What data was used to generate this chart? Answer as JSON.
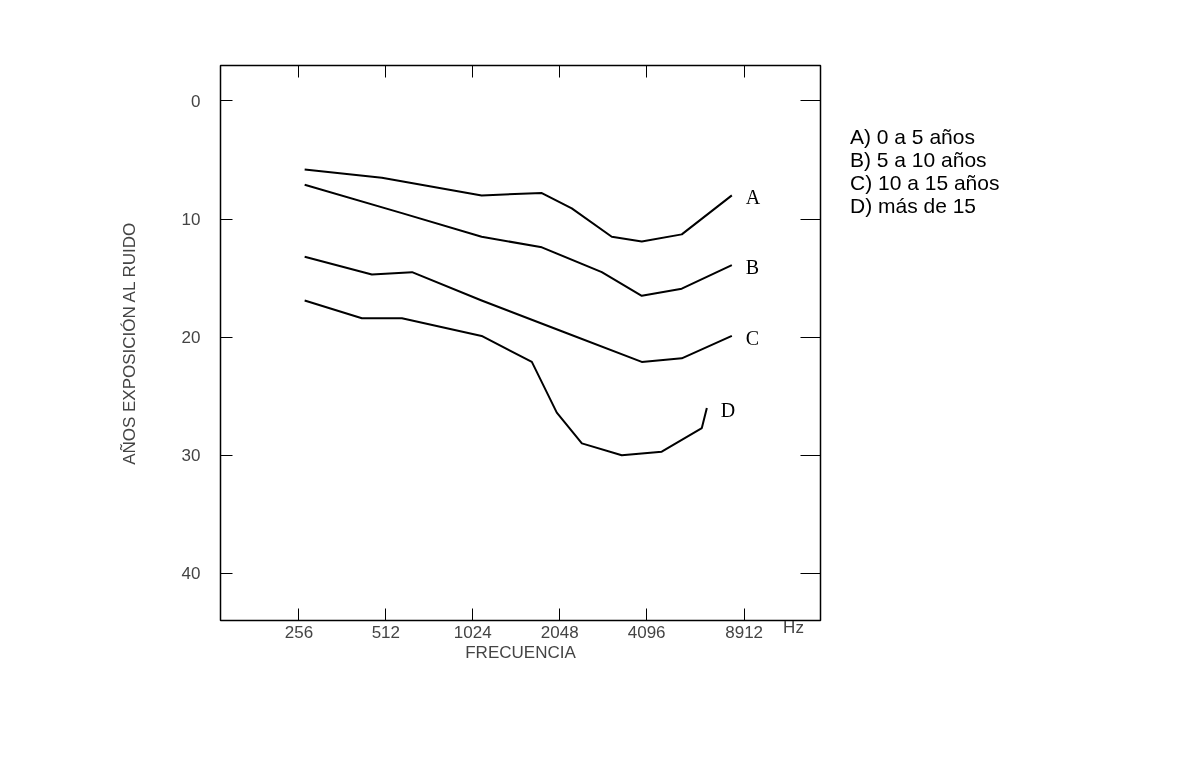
{
  "chart_data": {
    "type": "line",
    "ylabel": "AÑOS EXPOSICIÓN AL RUIDO",
    "xlabel": "FRECUENCIA",
    "log": "x",
    "xlim": [
      137,
      16384
    ],
    "xticks": [
      256,
      512,
      1024,
      2048,
      4096,
      8912
    ],
    "ylim": [
      44,
      -3
    ],
    "yticks": [
      0,
      10,
      20,
      30,
      40
    ],
    "grid": false,
    "legend": "right",
    "tick_labels": [
      "x",
      "y"
    ],
    "line_style": "solid",
    "marker": "none",
    "annotations": [
      "Hz",
      "A) 0 a 5 años",
      "B) 5 a 10 años",
      "C) 10 a 15 años",
      "D) más de 15"
    ],
    "series": [
      {
        "name": "A",
        "color": "#000000",
        "x": [
          268,
          496,
          1099,
          1776,
          2255,
          3102,
          3940,
          5420,
          8080
        ],
        "values": [
          5.8,
          6.5,
          8.0,
          7.8,
          9.1,
          11.5,
          11.9,
          11.3,
          8.0
        ]
      },
      {
        "name": "B",
        "color": "#000000",
        "x": [
          268,
          582,
          1099,
          1776,
          2865,
          3940,
          5420,
          8080
        ],
        "values": [
          7.1,
          9.5,
          11.5,
          12.4,
          14.5,
          16.5,
          15.9,
          13.9
        ]
      },
      {
        "name": "C",
        "color": "#000000",
        "x": [
          268,
          458,
          631,
          1099,
          2082,
          3940,
          5420,
          8080
        ],
        "values": [
          13.2,
          14.7,
          14.5,
          16.9,
          19.5,
          22.1,
          21.8,
          19.9
        ]
      },
      {
        "name": "D",
        "color": "#000000",
        "x": [
          268,
          423,
          582,
          1099,
          1640,
          2001,
          2444,
          3359,
          4620,
          6360,
          6620
        ],
        "values": [
          16.9,
          18.4,
          18.4,
          19.9,
          22.1,
          26.4,
          29.0,
          30.0,
          29.7,
          27.7,
          26.0
        ]
      }
    ]
  }
}
